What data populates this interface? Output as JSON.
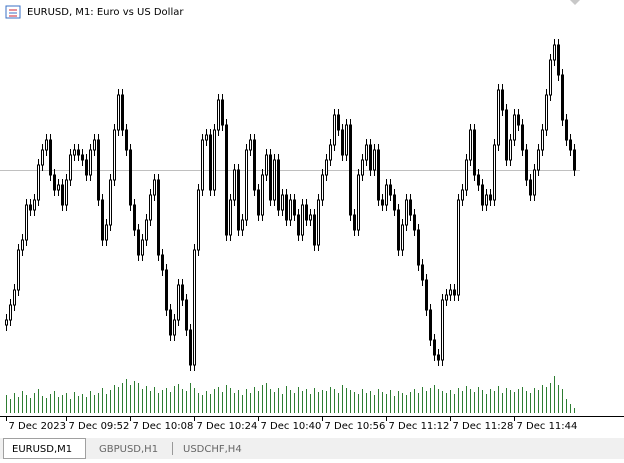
{
  "chart_data": {
    "type": "candlestick",
    "title": "EURUSD, M1:  Euro vs US Dollar",
    "categories": [
      "7 Dec 2023",
      null,
      null,
      null,
      null,
      null,
      null,
      null,
      null,
      null,
      null,
      null,
      null,
      null,
      null,
      "7 Dec 09:52",
      null,
      null,
      null,
      null,
      null,
      null,
      null,
      null,
      null,
      null,
      null,
      null,
      null,
      null,
      null,
      "7 Dec 10:08",
      null,
      null,
      null,
      null,
      null,
      null,
      null,
      null,
      null,
      null,
      null,
      null,
      null,
      null,
      null,
      "7 Dec 10:24",
      null,
      null,
      null,
      null,
      null,
      null,
      null,
      null,
      null,
      null,
      null,
      null,
      null,
      null,
      null,
      "7 Dec 10:40",
      null,
      null,
      null,
      null,
      null,
      null,
      null,
      null,
      null,
      null,
      null,
      null,
      null,
      null,
      null,
      "7 Dec 10:56",
      null,
      null,
      null,
      null,
      null,
      null,
      null,
      null,
      null,
      null,
      null,
      null,
      null,
      null,
      null,
      "7 Dec 11:12",
      null,
      null,
      null,
      null,
      null,
      null,
      null,
      null,
      null,
      null,
      null,
      null,
      null,
      null,
      null,
      "7 Dec 11:28",
      null,
      null,
      null,
      null,
      null,
      null,
      null,
      null,
      null,
      null,
      null,
      null,
      null,
      null,
      null,
      "7 Dec 11:44",
      null,
      null,
      null,
      null,
      null,
      null,
      null,
      null,
      null,
      null,
      null,
      null,
      null,
      null,
      null
    ],
    "open": [
      55,
      60,
      75,
      90,
      130,
      140,
      175,
      170,
      180,
      215,
      230,
      240,
      205,
      190,
      195,
      175,
      200,
      225,
      230,
      225,
      220,
      205,
      230,
      240,
      180,
      140,
      155,
      200,
      250,
      285,
      250,
      230,
      175,
      150,
      125,
      140,
      160,
      185,
      200,
      125,
      110,
      70,
      45,
      60,
      95,
      80,
      50,
      15,
      130,
      190,
      240,
      245,
      190,
      250,
      280,
      255,
      145,
      180,
      210,
      150,
      160,
      230,
      240,
      190,
      165,
      205,
      225,
      180,
      220,
      170,
      185,
      160,
      180,
      165,
      145,
      175,
      160,
      165,
      135,
      180,
      205,
      220,
      235,
      265,
      250,
      225,
      255,
      165,
      150,
      205,
      220,
      235,
      210,
      230,
      180,
      175,
      195,
      185,
      170,
      130,
      155,
      180,
      165,
      150,
      115,
      100,
      70,
      40,
      25,
      20,
      80,
      85,
      90,
      85,
      180,
      190,
      220,
      250,
      205,
      195,
      175,
      185,
      180,
      235,
      290,
      270,
      220,
      240,
      265,
      255,
      230,
      200,
      185,
      210,
      230,
      250,
      285,
      320,
      335,
      305,
      260,
      240,
      230
    ],
    "high": [
      66,
      81,
      96,
      136,
      146,
      181,
      181,
      186,
      221,
      236,
      246,
      246,
      211,
      201,
      201,
      206,
      231,
      236,
      236,
      231,
      226,
      236,
      246,
      246,
      186,
      161,
      206,
      256,
      291,
      291,
      256,
      236,
      181,
      156,
      146,
      166,
      191,
      206,
      206,
      131,
      116,
      76,
      66,
      101,
      101,
      86,
      56,
      136,
      196,
      246,
      251,
      251,
      256,
      286,
      286,
      261,
      186,
      216,
      216,
      166,
      236,
      246,
      246,
      196,
      211,
      231,
      231,
      226,
      226,
      191,
      191,
      186,
      186,
      171,
      181,
      181,
      171,
      171,
      186,
      211,
      226,
      241,
      271,
      271,
      256,
      261,
      261,
      171,
      211,
      226,
      241,
      241,
      236,
      236,
      186,
      201,
      201,
      191,
      176,
      161,
      186,
      186,
      171,
      156,
      121,
      106,
      76,
      46,
      31,
      86,
      91,
      96,
      96,
      186,
      196,
      226,
      256,
      256,
      211,
      201,
      191,
      191,
      241,
      296,
      296,
      276,
      246,
      271,
      271,
      261,
      236,
      206,
      216,
      236,
      256,
      291,
      326,
      341,
      341,
      311,
      266,
      246,
      236
    ],
    "low": [
      49,
      54,
      69,
      84,
      124,
      134,
      164,
      164,
      174,
      209,
      224,
      199,
      184,
      184,
      169,
      169,
      194,
      219,
      219,
      214,
      199,
      199,
      224,
      174,
      134,
      134,
      149,
      194,
      244,
      244,
      224,
      169,
      144,
      119,
      119,
      134,
      154,
      179,
      119,
      104,
      64,
      39,
      39,
      54,
      74,
      44,
      9,
      9,
      124,
      184,
      234,
      184,
      184,
      244,
      249,
      139,
      139,
      174,
      144,
      144,
      154,
      224,
      184,
      159,
      159,
      199,
      174,
      174,
      164,
      164,
      154,
      154,
      159,
      139,
      139,
      154,
      154,
      129,
      129,
      174,
      199,
      214,
      229,
      244,
      219,
      219,
      159,
      144,
      144,
      199,
      214,
      204,
      204,
      174,
      169,
      169,
      179,
      164,
      124,
      124,
      149,
      159,
      144,
      109,
      94,
      64,
      34,
      19,
      14,
      14,
      74,
      79,
      79,
      79,
      174,
      184,
      214,
      199,
      189,
      169,
      169,
      174,
      174,
      229,
      264,
      214,
      214,
      234,
      249,
      224,
      194,
      179,
      179,
      204,
      224,
      244,
      279,
      314,
      299,
      254,
      234,
      224,
      204
    ],
    "close": [
      60,
      75,
      90,
      130,
      140,
      175,
      170,
      180,
      215,
      230,
      240,
      205,
      190,
      195,
      175,
      200,
      225,
      230,
      225,
      220,
      205,
      230,
      240,
      180,
      140,
      155,
      200,
      250,
      285,
      250,
      230,
      175,
      150,
      125,
      140,
      160,
      185,
      200,
      125,
      110,
      70,
      45,
      60,
      95,
      80,
      50,
      15,
      130,
      190,
      240,
      245,
      190,
      250,
      280,
      255,
      145,
      180,
      210,
      150,
      160,
      230,
      240,
      190,
      165,
      205,
      225,
      180,
      220,
      170,
      185,
      160,
      180,
      165,
      145,
      175,
      160,
      165,
      135,
      180,
      205,
      220,
      235,
      265,
      250,
      225,
      255,
      165,
      150,
      205,
      220,
      235,
      210,
      230,
      180,
      175,
      195,
      185,
      170,
      130,
      155,
      180,
      165,
      150,
      115,
      100,
      70,
      40,
      25,
      20,
      80,
      85,
      90,
      85,
      180,
      190,
      220,
      250,
      205,
      195,
      175,
      185,
      180,
      235,
      290,
      270,
      220,
      240,
      265,
      255,
      230,
      200,
      185,
      210,
      230,
      250,
      285,
      320,
      335,
      305,
      260,
      240,
      230,
      210
    ],
    "color": "#000000",
    "ylim": [
      0,
      350
    ],
    "bid": 210,
    "bid_color": "#c0c0c0",
    "volume": {
      "color": "#2e7d32",
      "ylim": [
        0,
        40
      ],
      "values": [
        18,
        14,
        20,
        16,
        22,
        18,
        15,
        20,
        24,
        17,
        15,
        19,
        22,
        16,
        18,
        20,
        14,
        21,
        17,
        19,
        16,
        22,
        18,
        20,
        25,
        19,
        23,
        28,
        26,
        30,
        34,
        28,
        32,
        30,
        24,
        27,
        22,
        26,
        20,
        23,
        25,
        21,
        27,
        29,
        24,
        22,
        30,
        25,
        20,
        18,
        22,
        19,
        24,
        26,
        21,
        28,
        25,
        20,
        23,
        18,
        24,
        20,
        26,
        22,
        28,
        30,
        24,
        21,
        25,
        19,
        27,
        23,
        20,
        26,
        22,
        24,
        19,
        25,
        21,
        23,
        22,
        26,
        24,
        20,
        28,
        25,
        23,
        21,
        19,
        24,
        20,
        22,
        18,
        24,
        21,
        19,
        23,
        17,
        22,
        20,
        18,
        21,
        24,
        20,
        26,
        22,
        25,
        28,
        24,
        22,
        20,
        23,
        19,
        25,
        22,
        27,
        24,
        21,
        26,
        23,
        19,
        24,
        22,
        27,
        20,
        25,
        23,
        21,
        24,
        26,
        22,
        20,
        25,
        23,
        28,
        26,
        30,
        37,
        28,
        24,
        14,
        9,
        5
      ]
    }
  },
  "tabs": [
    "EURUSD,M1",
    "GBPUSD,H1",
    "USDCHF,H4"
  ]
}
